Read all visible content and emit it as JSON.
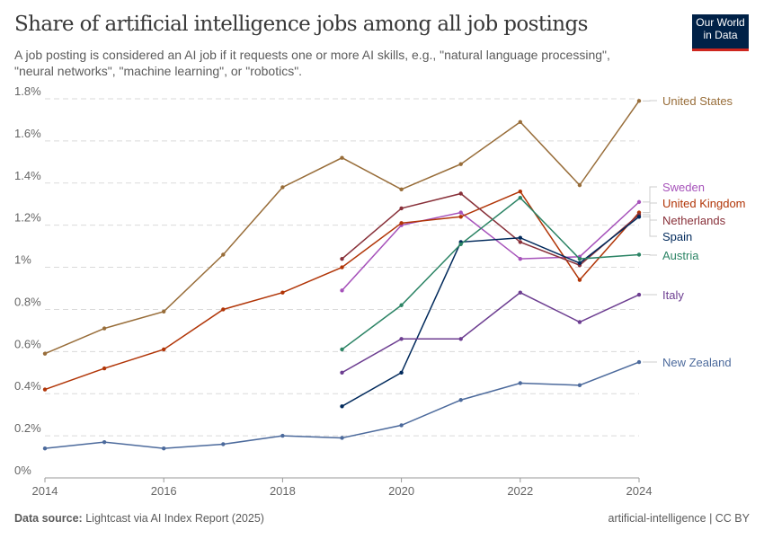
{
  "header": {
    "title": "Share of artificial intelligence jobs among all job postings",
    "subtitle": "A job posting is considered an AI job if it requests one or more AI skills, e.g., \"natural language processing\", \"neural networks\", \"machine learning\", or \"robotics\".",
    "logo": "Our World in Data"
  },
  "footer": {
    "source_label": "Data source:",
    "source": "Lightcast via AI Index Report (2025)",
    "right": "artificial-intelligence | CC BY"
  },
  "chart_data": {
    "type": "line",
    "title": "Share of artificial intelligence jobs among all job postings",
    "xlim": [
      2014,
      2024
    ],
    "ylim": [
      0,
      1.8
    ],
    "x_ticks": [
      2014,
      2016,
      2018,
      2020,
      2022,
      2024
    ],
    "y_ticks": [
      0,
      0.2,
      0.4,
      0.6,
      0.8,
      1,
      1.2,
      1.4,
      1.6,
      1.8
    ],
    "y_tick_labels": [
      "0%",
      "0.2%",
      "0.4%",
      "0.6%",
      "0.8%",
      "1%",
      "1.2%",
      "1.4%",
      "1.6%",
      "1.8%"
    ],
    "grid": "horizontal dashed",
    "legend": "right (inline labels)",
    "series": [
      {
        "name": "United States",
        "color": "#986d39",
        "x": [
          2014,
          2015,
          2016,
          2017,
          2018,
          2019,
          2020,
          2021,
          2022,
          2023,
          2024
        ],
        "values": [
          0.59,
          0.71,
          0.79,
          1.06,
          1.38,
          1.52,
          1.37,
          1.49,
          1.69,
          1.39,
          1.79
        ]
      },
      {
        "name": "Sweden",
        "color": "#a652ba",
        "x": [
          2019,
          2020,
          2021,
          2022,
          2023,
          2024
        ],
        "values": [
          0.89,
          1.2,
          1.26,
          1.04,
          1.05,
          1.31
        ]
      },
      {
        "name": "United Kingdom",
        "color": "#b13507",
        "x": [
          2014,
          2015,
          2016,
          2017,
          2018,
          2019,
          2020,
          2021,
          2022,
          2023,
          2024
        ],
        "values": [
          0.42,
          0.52,
          0.61,
          0.8,
          0.88,
          1.0,
          1.21,
          1.24,
          1.36,
          0.94,
          1.26
        ]
      },
      {
        "name": "Netherlands",
        "color": "#883039",
        "x": [
          2019,
          2020,
          2021,
          2022,
          2023,
          2024
        ],
        "values": [
          1.04,
          1.28,
          1.35,
          1.12,
          1.01,
          1.25
        ]
      },
      {
        "name": "Spain",
        "color": "#00295b",
        "x": [
          2019,
          2020,
          2021,
          2022,
          2023,
          2024
        ],
        "values": [
          0.34,
          0.5,
          1.12,
          1.14,
          1.02,
          1.24
        ]
      },
      {
        "name": "Austria",
        "color": "#2c8465",
        "x": [
          2019,
          2020,
          2021,
          2022,
          2023,
          2024
        ],
        "values": [
          0.61,
          0.82,
          1.11,
          1.33,
          1.04,
          1.06
        ]
      },
      {
        "name": "Italy",
        "color": "#6d3e91",
        "x": [
          2019,
          2020,
          2021,
          2022,
          2023,
          2024
        ],
        "values": [
          0.5,
          0.66,
          0.66,
          0.88,
          0.74,
          0.87
        ]
      },
      {
        "name": "New Zealand",
        "color": "#4c6a9c",
        "x": [
          2014,
          2015,
          2016,
          2017,
          2018,
          2019,
          2020,
          2021,
          2022,
          2023,
          2024
        ],
        "values": [
          0.14,
          0.17,
          0.14,
          0.16,
          0.2,
          0.19,
          0.25,
          0.37,
          0.45,
          0.44,
          0.55
        ]
      }
    ]
  }
}
